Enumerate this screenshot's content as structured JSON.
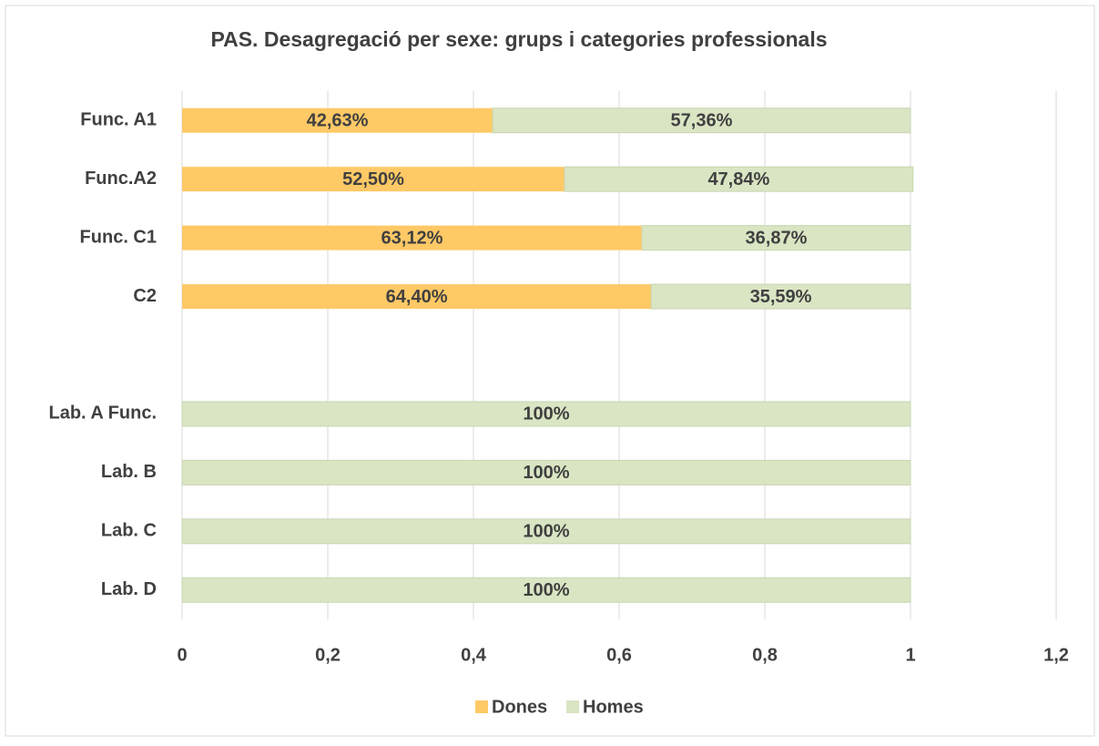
{
  "chart_data": {
    "type": "stacked_barh",
    "title": "PAS. Desagregació per sexe: grups i categories professionals",
    "categories": [
      "Func. A1",
      "Func.A2",
      "Func. C1",
      "C2",
      null,
      "Lab. A Func.",
      "Lab. B",
      "Lab. C",
      "Lab. D"
    ],
    "series": [
      {
        "name": "Dones",
        "color": "#ffc966",
        "values": [
          0.4263,
          0.525,
          0.6312,
          0.644,
          null,
          0,
          0,
          0,
          0
        ],
        "value_labels": [
          "42,63%",
          "52,50%",
          "63,12%",
          "64,40%",
          null,
          null,
          null,
          null,
          null
        ]
      },
      {
        "name": "Homes",
        "color": "#d9e5c3",
        "values": [
          0.5736,
          0.4784,
          0.3687,
          0.3559,
          null,
          1,
          1,
          1,
          1
        ],
        "value_labels": [
          "57,36%",
          "47,84%",
          "36,87%",
          "35,59%",
          null,
          "100%",
          "100%",
          "100%",
          "100%"
        ]
      }
    ],
    "xlim": [
      0,
      1.2
    ],
    "xticks": [
      0,
      {
        "value": 0.2,
        "label": "0,2"
      },
      {
        "value": 0.4,
        "label": "0,4"
      },
      {
        "value": 0.6,
        "label": "0,6"
      },
      {
        "value": 0.8,
        "label": "0,8"
      },
      1,
      {
        "value": 1.2,
        "label": "1,2"
      }
    ],
    "grid": true,
    "legend": "bottom"
  }
}
